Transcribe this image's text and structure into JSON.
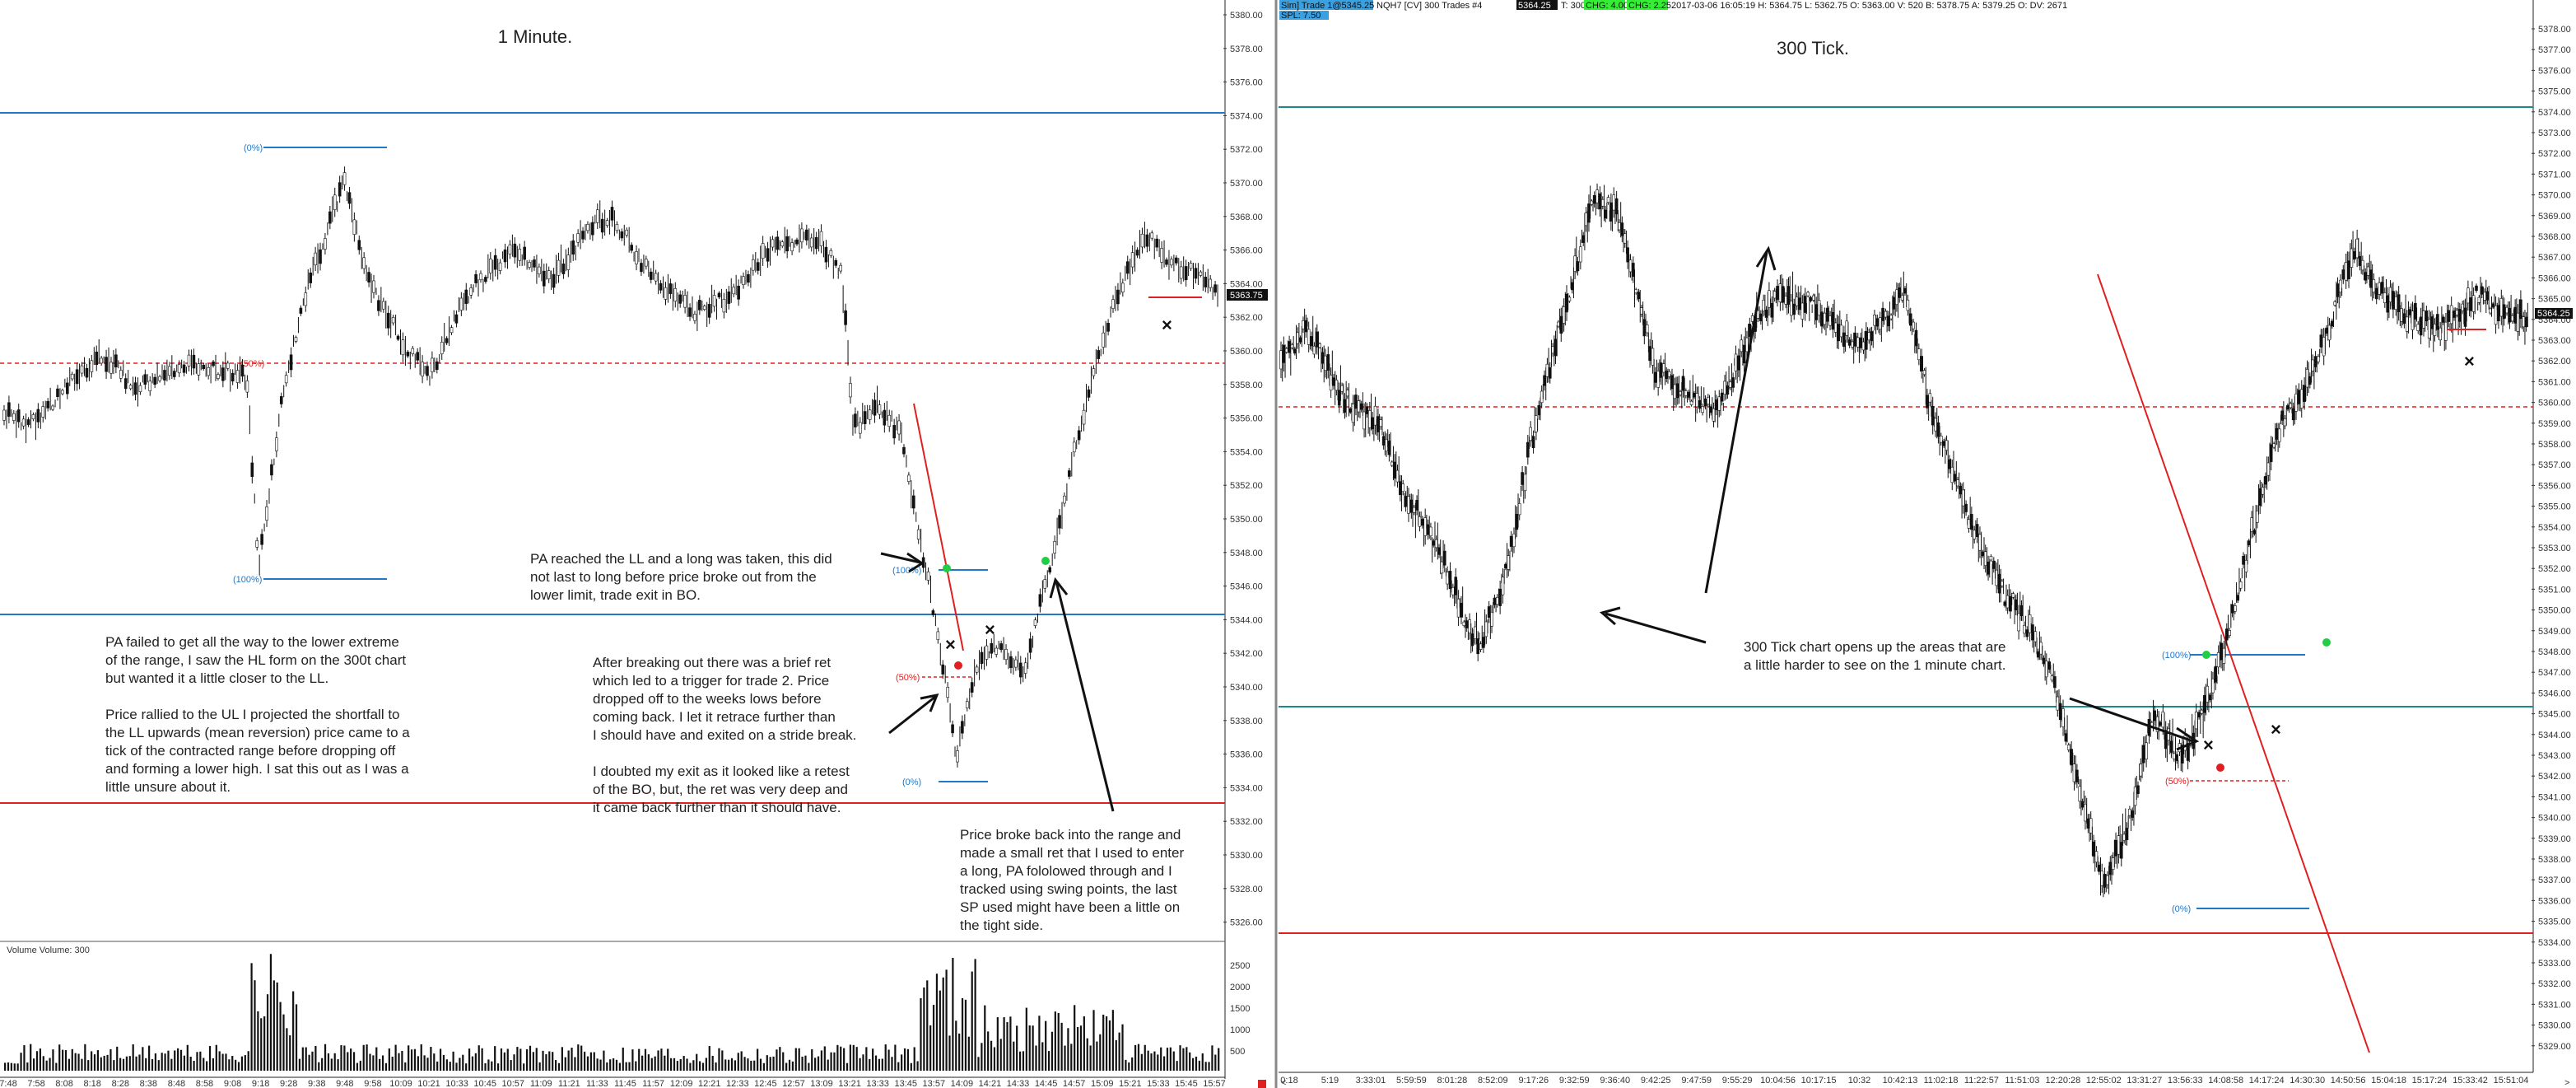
{
  "left_chart": {
    "title": "1 Minute.",
    "volume_label": "Volume  Volume: 300",
    "current_price": "5363.75",
    "price_axis": [
      "5380.00",
      "5378.00",
      "5376.00",
      "5374.00",
      "5372.00",
      "5370.00",
      "5368.00",
      "5366.00",
      "5364.00",
      "5362.00",
      "5360.00",
      "5358.00",
      "5356.00",
      "5354.00",
      "5352.00",
      "5350.00",
      "5348.00",
      "5346.00",
      "5344.00",
      "5342.00",
      "5340.00",
      "5338.00",
      "5336.00",
      "5334.00",
      "5332.00",
      "5330.00",
      "5328.00",
      "5326.00"
    ],
    "volume_axis": [
      "2500",
      "2000",
      "1500",
      "1000",
      "500"
    ],
    "time_axis": [
      "7:48",
      "7:58",
      "8:08",
      "8:18",
      "8:28",
      "8:38",
      "8:48",
      "8:58",
      "9:08",
      "9:18",
      "9:28",
      "9:38",
      "9:48",
      "9:58",
      "10:09",
      "10:21",
      "10:33",
      "10:45",
      "10:57",
      "11:09",
      "11:21",
      "11:33",
      "11:45",
      "11:57",
      "12:09",
      "12:21",
      "12:33",
      "12:45",
      "12:57",
      "13:09",
      "13:21",
      "13:33",
      "13:45",
      "13:57",
      "14:09",
      "14:21",
      "14:33",
      "14:45",
      "14:57",
      "15:09",
      "15:21",
      "15:33",
      "15:45",
      "15:57"
    ],
    "fib_labels": {
      "top": "(0%)",
      "mid": "(50%)",
      "bottom": "(100%)",
      "small_top": "(100%)",
      "small_mid": "(50%)",
      "small_bottom": "(0%)"
    },
    "annotations": {
      "pa_failed": [
        "PA failed to get all the way to the lower extreme",
        "of the range, I saw the HL form on the 300t chart",
        "but wanted it a little closer to the LL.",
        "",
        "Price rallied to the UL I projected the shortfall to",
        "the LL upwards (mean reversion) price came to a",
        "tick of the contracted range before dropping off",
        "and forming a lower high.  I sat this out as I was a",
        "little unsure about it."
      ],
      "pa_reached": [
        "PA reached the LL and a long was taken, this did",
        "not last to long before price broke out from the",
        "lower limit, trade exit in BO."
      ],
      "after_breaking": [
        "After breaking out there was a brief ret",
        "which led to a trigger for trade 2.  Price",
        "dropped off to the weeks lows before",
        "coming back.  I let it retrace further than",
        "I should have and exited on a stride break.",
        "",
        "I doubted my exit as it looked like a retest",
        "of the  BO, but, the ret was very deep and",
        "it came back further than it should have."
      ],
      "price_broke": [
        "Price broke back into the range and",
        "made a small ret that I used to enter",
        "a long, PA fololowed through and I",
        "tracked using swing points, the last",
        "SP used might have been a little on",
        "the tight side."
      ]
    }
  },
  "right_chart": {
    "title": "300 Tick.",
    "header": {
      "account": "Sim] Trade 1@5345.25",
      "instrument": "NQH7 [CV]  300 Trades  #4",
      "price_a": "5364.25",
      "t_label": "T: 300",
      "chg_a": "CHG: 4.00",
      "chg_b": "CHG: 2.25",
      "ohlc": "2017-03-06 16:05:19  H: 5364.75  L: 5362.75  O: 5363.00  V: 520  B: 5378.75  A: 5379.25  O: DV: 2671",
      "pnl": "SPL: 7.50"
    },
    "current_price": "5364.25",
    "price_axis": [
      "5378.00",
      "5377.00",
      "5376.00",
      "5375.00",
      "5374.00",
      "5373.00",
      "5372.00",
      "5371.00",
      "5370.00",
      "5369.00",
      "5368.00",
      "5367.00",
      "5366.00",
      "5365.00",
      "5364.00",
      "5363.00",
      "5362.00",
      "5361.00",
      "5360.00",
      "5359.00",
      "5358.00",
      "5357.00",
      "5356.00",
      "5355.00",
      "5354.00",
      "5353.00",
      "5352.00",
      "5351.00",
      "5350.00",
      "5349.00",
      "5348.00",
      "5347.00",
      "5346.00",
      "5345.00",
      "5344.00",
      "5343.00",
      "5342.00",
      "5341.00",
      "5340.00",
      "5339.00",
      "5338.00",
      "5337.00",
      "5336.00",
      "5335.00",
      "5334.00",
      "5333.00",
      "5332.00",
      "5331.00",
      "5330.00",
      "5329.00"
    ],
    "time_axis": [
      "0:18",
      "5:19",
      "3:33:01",
      "5:59:59",
      "8:01:28",
      "8:52:09",
      "9:17:26",
      "9:32:59",
      "9:36:40",
      "9:42:25",
      "9:47:59",
      "9:55:29",
      "10:04:56",
      "10:17:15",
      "10:32",
      "10:42:13",
      "11:02:18",
      "11:22:57",
      "11:51:03",
      "12:20:28",
      "12:55:02",
      "13:31:27",
      "13:56:33",
      "14:08:58",
      "14:17:24",
      "14:30:30",
      "14:50:56",
      "15:04:18",
      "15:17:24",
      "15:33:42",
      "15:51:04"
    ],
    "fib_labels": {
      "top": "(100%)",
      "mid": "(50%)",
      "bottom": "(0%)"
    },
    "annotations": {
      "tick_note": [
        "300 Tick chart opens up the areas that are",
        "a little harder to see on the 1 minute chart."
      ]
    }
  },
  "colors": {
    "blue_level": "#1f78c8",
    "red_level": "#e02020",
    "teal_level": "#1a8a8a",
    "green_dot": "#22cc44",
    "red_dot": "#e02020"
  }
}
